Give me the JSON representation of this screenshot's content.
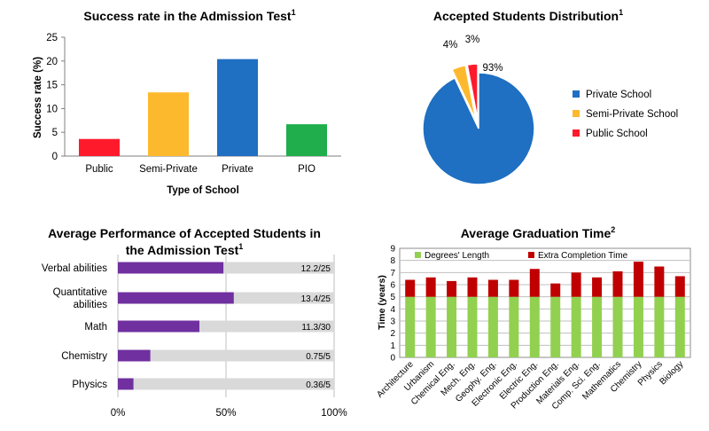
{
  "chart_data": [
    {
      "type": "bar",
      "title": "Success rate in the Admission Test",
      "title_sup": "1",
      "xlabel": "Type of School",
      "ylabel": "Success rate (%)",
      "ylim": [
        0,
        25
      ],
      "yticks": [
        "0",
        "5",
        "10",
        "15",
        "20",
        "25"
      ],
      "categories": [
        "Public",
        "Semi-Private",
        "Private",
        "PIO"
      ],
      "values": [
        3.6,
        13.4,
        20.4,
        6.7
      ],
      "colors": [
        "#ff1a2b",
        "#fdb92e",
        "#1f6fc2",
        "#1fae4b"
      ],
      "grid": false
    },
    {
      "type": "pie",
      "title": "Accepted Students Distribution",
      "title_sup": "1",
      "slices": [
        {
          "name": "Private School",
          "value": 93,
          "label": "93%",
          "color": "#1f6fc2"
        },
        {
          "name": "Semi-Private School",
          "value": 4,
          "label": "4%",
          "color": "#fdb92e"
        },
        {
          "name": "Public School",
          "value": 3,
          "label": "3%",
          "color": "#ff1a2b"
        }
      ],
      "legend_placement": "right"
    },
    {
      "type": "bar",
      "orientation": "horizontal",
      "title": "Average Performance of Accepted Students in the Admission Test",
      "title_line1": "Average Performance of Accepted Students in",
      "title_line2": "the Admission Test",
      "title_sup": "1",
      "categories": [
        "Verbal abilities",
        "Quantitative abilities",
        "Math",
        "Chemistry",
        "Physics"
      ],
      "category_lines": [
        [
          "Verbal abilities"
        ],
        [
          "Quantitative",
          "abilities"
        ],
        [
          "Math"
        ],
        [
          "Chemistry"
        ],
        [
          "Physics"
        ]
      ],
      "values": [
        48.8,
        53.6,
        37.7,
        15,
        7.2
      ],
      "value_labels": [
        "12.2/25",
        "13.4/25",
        "11.3/30",
        "0.75/5",
        "0.36/5"
      ],
      "xlim": [
        0,
        100
      ],
      "xticks": [
        "0%",
        "50%",
        "100%"
      ],
      "bar_color": "#7030a0",
      "track_color": "#d9d9d9"
    },
    {
      "type": "bar",
      "stacked": true,
      "title": "Average Graduation Time",
      "title_sup": "2",
      "ylabel": "Time (years)",
      "ylim": [
        0,
        9
      ],
      "yticks": [
        "0",
        "1",
        "2",
        "3",
        "4",
        "5",
        "6",
        "7",
        "8",
        "9"
      ],
      "categories": [
        "Architecture",
        "Urbanism",
        "Chemical Eng.",
        "Mech. Eng.",
        "Geophy. Eng.",
        "Electronic Eng.",
        "Electric Eng.",
        "Production Eng.",
        "Materials Eng.",
        "Comp. Sci. Eng.",
        "Mathematics",
        "Chemistry",
        "Physics",
        "Biology"
      ],
      "series": [
        {
          "name": "Degrees' Length",
          "color": "#92d050",
          "values": [
            5,
            5,
            5,
            5,
            5,
            5,
            5,
            5,
            5,
            5,
            5,
            5,
            5,
            5
          ]
        },
        {
          "name": "Extra Completion Time",
          "color": "#c00000",
          "values": [
            1.4,
            1.6,
            1.3,
            1.6,
            1.4,
            1.4,
            2.3,
            1.1,
            2.0,
            1.6,
            2.1,
            2.9,
            2.5,
            1.7
          ]
        }
      ],
      "grid": true,
      "legend_placement": "top"
    }
  ]
}
